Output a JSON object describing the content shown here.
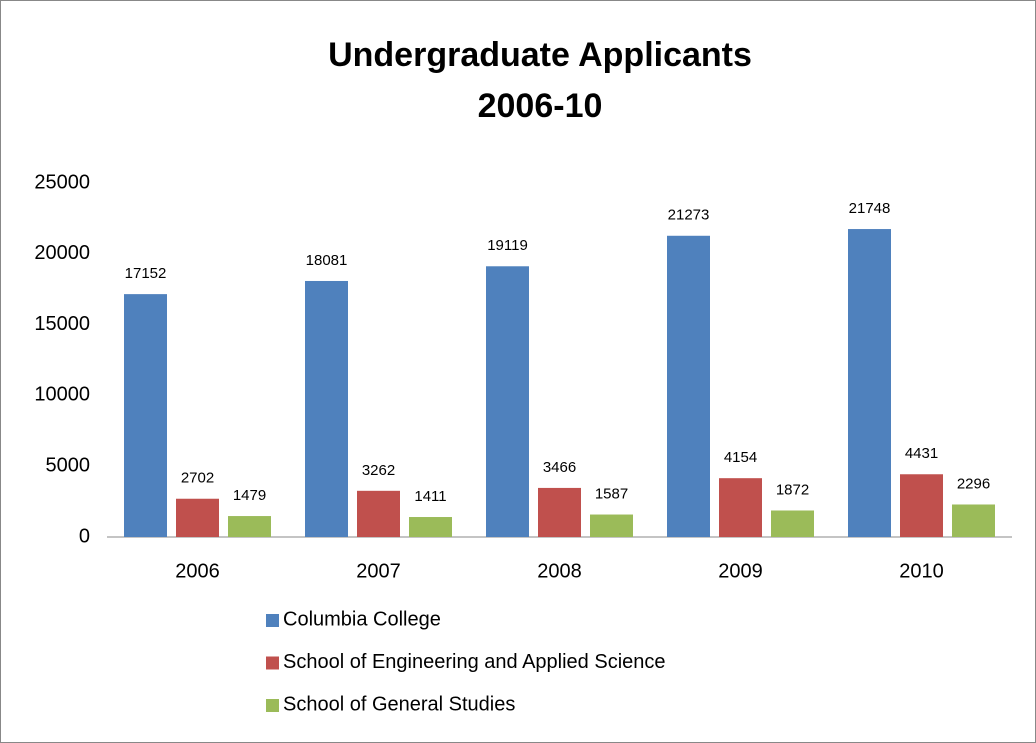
{
  "chart_data": {
    "type": "bar",
    "title": [
      "Undergraduate Applicants",
      "2006-10"
    ],
    "categories": [
      "2006",
      "2007",
      "2008",
      "2009",
      "2010"
    ],
    "series": [
      {
        "name": "Columbia College",
        "color": "#4f81bd",
        "values": [
          17152,
          18081,
          19119,
          21273,
          21748
        ]
      },
      {
        "name": "School of Engineering and Applied Science",
        "color": "#c0504d",
        "values": [
          2702,
          3262,
          3466,
          4154,
          4431
        ]
      },
      {
        "name": "School of General Studies",
        "color": "#9bbb59",
        "values": [
          1479,
          1411,
          1587,
          1872,
          2296
        ]
      }
    ],
    "ylim": [
      0,
      25000
    ],
    "yticks": [
      0,
      5000,
      10000,
      15000,
      20000,
      25000
    ],
    "grid": false,
    "legend": "bottom"
  }
}
